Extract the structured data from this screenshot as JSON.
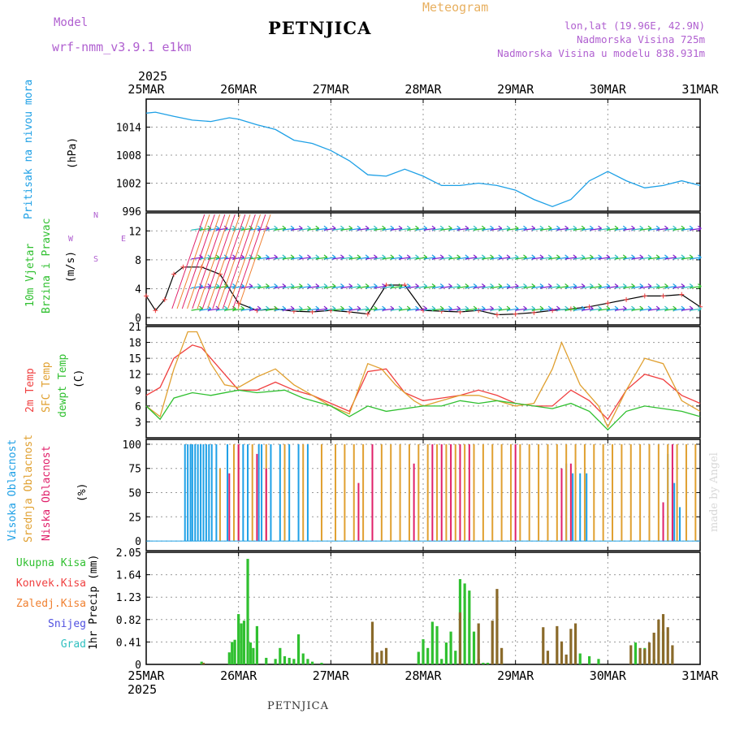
{
  "header": {
    "model_label": "Model",
    "model_name": "wrf-nmm_v3.9.1  e1km",
    "station": "PETNJICA",
    "meteogram": "Meteogram",
    "lonlat": "lon,lat (19.96E, 42.9N)",
    "elev": "Nadmorska Visina 725m",
    "elev_model": "Nadmorska Visina u modelu 838.931m"
  },
  "time_axis": {
    "year": "2025",
    "labels": [
      "25MAR",
      "26MAR",
      "27MAR",
      "28MAR",
      "29MAR",
      "30MAR",
      "31MAR"
    ]
  },
  "footer": "PETNJICA",
  "watermark": "made by Angel",
  "colors": {
    "pressure": "#1ea0e6",
    "t2m": "#f04040",
    "tsfc": "#e0a030",
    "dewpt": "#30c030",
    "high": "#1ea0e6",
    "mid": "#e0a030",
    "low": "#e0206a",
    "total": "#30c030",
    "conv": "#f04040",
    "frz": "#f08030",
    "snow": "#5050e0",
    "hail": "#30c0c0",
    "wind": "#8020d0"
  },
  "panels": {
    "pressure": {
      "ylabel": "Pritisak na nivou mora",
      "unit": "(hPa)"
    },
    "wind": {
      "ylabel1": "10m Vjetar",
      "ylabel2": "Brzina i Pravac",
      "unit": "(m/s)",
      "compass": {
        "n": "N",
        "w": "W",
        "e": "E",
        "s": "S",
        "sep": "<-|->"
      }
    },
    "temp": {
      "lab1": "2m Temp",
      "lab2": "SFC Temp",
      "lab3": "dewpt Temp",
      "unit": "(C)"
    },
    "cloud": {
      "lab1": "Visoka Oblacnost",
      "lab2": "Srednja Oblacnost",
      "lab3": "Niska Oblacnost",
      "unit": "(%)"
    },
    "precip": {
      "legend": [
        "Ukupna Kisa",
        "Konvek.Kisa",
        "Zaledj.Kisa",
        "Snijeg",
        "Grad"
      ],
      "unit": "1hr Precip (mm)"
    }
  },
  "chart_data": [
    {
      "type": "line",
      "title": "Pritisak na nivou mora",
      "ylabel": "(hPa)",
      "ylim": [
        996,
        1020
      ],
      "yticks": [
        "1014",
        "1008",
        "1002",
        "996"
      ],
      "series": [
        {
          "name": "Pritisak",
          "color": "#1ea0e6",
          "x": [
            0,
            0.1,
            0.3,
            0.5,
            0.7,
            0.9,
            1.0,
            1.2,
            1.4,
            1.6,
            1.8,
            2.0,
            2.2,
            2.4,
            2.6,
            2.8,
            3.0,
            3.2,
            3.4,
            3.6,
            3.8,
            4.0,
            4.2,
            4.4,
            4.6,
            4.8,
            4.9,
            5.0,
            5.2,
            5.4,
            5.6,
            5.8,
            6.0
          ],
          "y": [
            1017,
            1017.2,
            1016.3,
            1015.5,
            1015.2,
            1016,
            1015.7,
            1014.5,
            1013.5,
            1011.2,
            1010.5,
            1009,
            1006.8,
            1003.8,
            1003.5,
            1005,
            1003.5,
            1001.5,
            1001.5,
            1002,
            1001.5,
            1000.5,
            998.5,
            997,
            998.5,
            1002.5,
            1003.5,
            1004.5,
            1002.5,
            1001,
            1001.5,
            1002.5,
            1001.5
          ]
        }
      ]
    },
    {
      "type": "line",
      "title": "10m Vjetar Brzina i Pravac",
      "ylabel": "(m/s)",
      "ylim": [
        0,
        14
      ],
      "yticks": [
        "12",
        "8",
        "4",
        "0"
      ],
      "series": [
        {
          "name": "Brzina",
          "x": [
            0,
            0.1,
            0.2,
            0.3,
            0.4,
            0.6,
            0.8,
            1.0,
            1.2,
            1.4,
            1.6,
            1.8,
            2.0,
            2.2,
            2.4,
            2.6,
            2.8,
            3.0,
            3.2,
            3.4,
            3.6,
            3.8,
            4.0,
            4.2,
            4.4,
            4.6,
            4.8,
            5.0,
            5.2,
            5.4,
            5.6,
            5.8,
            6.0
          ],
          "y": [
            3,
            1,
            2.5,
            6,
            7,
            7,
            6,
            2,
            1,
            1.2,
            0.9,
            0.8,
            1,
            0.8,
            0.5,
            4.5,
            4.5,
            1,
            0.9,
            0.8,
            1,
            0.4,
            0.5,
            0.7,
            1,
            1.2,
            1.5,
            2,
            2.5,
            3,
            3,
            3.2,
            1.5
          ]
        }
      ]
    },
    {
      "type": "line",
      "title": "2m Temp / SFC Temp / dewpt Temp",
      "ylabel": "(C)",
      "ylim": [
        0,
        21
      ],
      "yticks": [
        "21",
        "18",
        "15",
        "12",
        "9",
        "6",
        "3"
      ],
      "series": [
        {
          "name": "2m Temp",
          "color": "#f04040",
          "x": [
            0,
            0.15,
            0.3,
            0.5,
            0.6,
            1.0,
            1.2,
            1.4,
            1.6,
            1.8,
            2.0,
            2.2,
            2.4,
            2.6,
            2.8,
            3.0,
            3.2,
            3.4,
            3.6,
            3.8,
            4.0,
            4.2,
            4.4,
            4.6,
            4.8,
            5.0,
            5.2,
            5.4,
            5.6,
            5.8,
            6.0
          ],
          "y": [
            8,
            9.5,
            15,
            17.5,
            17,
            9,
            9,
            10.5,
            9,
            8,
            6.5,
            5,
            12.5,
            13,
            8.5,
            7,
            7.5,
            8,
            9,
            8,
            6.5,
            6,
            6,
            9,
            7,
            3.5,
            9,
            12,
            11,
            8,
            6.5
          ]
        },
        {
          "name": "SFC Temp",
          "color": "#e0a030",
          "x": [
            0,
            0.15,
            0.3,
            0.45,
            0.55,
            0.7,
            0.85,
            1.0,
            1.2,
            1.4,
            1.6,
            1.8,
            2.0,
            2.2,
            2.4,
            2.55,
            2.7,
            2.9,
            3.0,
            3.2,
            3.4,
            3.6,
            3.8,
            4.0,
            4.2,
            4.4,
            4.5,
            4.7,
            4.9,
            5.0,
            5.2,
            5.4,
            5.6,
            5.8,
            6.0
          ],
          "y": [
            6,
            4,
            13,
            20,
            20,
            14,
            10,
            9.5,
            11.5,
            13,
            10,
            8,
            6,
            4.5,
            14,
            13,
            10,
            7,
            6,
            7,
            8,
            8,
            7,
            6,
            6.5,
            13,
            18,
            10,
            6,
            2,
            9,
            15,
            14,
            7,
            5
          ]
        },
        {
          "name": "dewpt Temp",
          "color": "#30c030",
          "x": [
            0,
            0.15,
            0.3,
            0.5,
            0.7,
            1.0,
            1.2,
            1.5,
            1.7,
            2.0,
            2.2,
            2.4,
            2.6,
            2.8,
            3.0,
            3.2,
            3.4,
            3.6,
            3.8,
            4.0,
            4.2,
            4.4,
            4.6,
            4.8,
            5.0,
            5.2,
            5.4,
            5.6,
            5.8,
            6.0
          ],
          "y": [
            6,
            3.5,
            7.5,
            8.5,
            8,
            9,
            8.5,
            9,
            7.5,
            6,
            4,
            6,
            5,
            5.5,
            6,
            6,
            7,
            6.5,
            7,
            6.5,
            6,
            5.5,
            6.5,
            5,
            1.5,
            5,
            6,
            5.5,
            5,
            4
          ]
        }
      ]
    },
    {
      "type": "bar",
      "title": "Oblacnost",
      "ylabel": "(%)",
      "ylim": [
        0,
        100
      ],
      "yticks": [
        "100",
        "75",
        "50",
        "25",
        "0"
      ],
      "series": [
        {
          "name": "Visoka Oblacnost",
          "color": "#1ea0e6",
          "x": [
            0.42,
            0.45,
            0.48,
            0.5,
            0.53,
            0.56,
            0.59,
            0.62,
            0.65,
            0.68,
            0.71,
            0.76,
            0.88,
            1.05,
            1.1,
            1.22,
            1.25,
            1.35,
            1.45,
            1.55,
            1.65,
            1.75,
            4.55,
            4.62,
            4.7,
            4.77,
            5.65,
            5.72,
            5.78
          ],
          "y": [
            100,
            100,
            100,
            100,
            100,
            100,
            100,
            100,
            100,
            100,
            100,
            100,
            100,
            100,
            100,
            100,
            100,
            100,
            100,
            100,
            100,
            100,
            80,
            70,
            70,
            70,
            90,
            60,
            35
          ]
        },
        {
          "name": "Srednja Oblacnost",
          "color": "#e0a030",
          "x": [
            0.8,
            0.95,
            1.0,
            1.15,
            1.3,
            1.5,
            1.7,
            1.9,
            2.05,
            2.15,
            2.25,
            2.35,
            2.45,
            2.55,
            2.65,
            2.75,
            2.85,
            2.95,
            3.05,
            3.15,
            3.25,
            3.35,
            3.45,
            3.55,
            3.65,
            3.75,
            3.85,
            3.95,
            4.05,
            4.15,
            4.25,
            4.35,
            4.45,
            4.55,
            4.65,
            4.75,
            4.85,
            4.95,
            5.05,
            5.15,
            5.25,
            5.35,
            5.45,
            5.55,
            5.65,
            5.75,
            5.85,
            5.95
          ],
          "y": [
            75,
            100,
            100,
            100,
            100,
            100,
            100,
            100,
            100,
            100,
            100,
            100,
            100,
            100,
            100,
            100,
            100,
            100,
            100,
            100,
            100,
            100,
            100,
            100,
            100,
            100,
            100,
            100,
            100,
            100,
            100,
            100,
            100,
            100,
            100,
            100,
            100,
            100,
            100,
            100,
            100,
            100,
            100,
            100,
            100,
            100,
            100,
            100
          ]
        },
        {
          "name": "Niska Oblacnost",
          "color": "#e0206a",
          "x": [
            0.9,
            1.0,
            1.2,
            1.3,
            2.3,
            2.45,
            2.9,
            3.1,
            3.2,
            3.3,
            3.4,
            3.5,
            4.0,
            4.5,
            4.6,
            5.6,
            5.7
          ],
          "y": [
            70,
            100,
            90,
            75,
            60,
            100,
            80,
            100,
            100,
            100,
            100,
            100,
            100,
            75,
            80,
            40,
            100
          ]
        }
      ]
    },
    {
      "type": "bar",
      "title": "1hr Precip",
      "ylabel": "(mm)",
      "ylim": [
        0,
        2.05
      ],
      "yticks": [
        "2.05",
        "1.64",
        "1.23",
        "0.82",
        "0.41",
        "0"
      ],
      "series": [
        {
          "name": "Ukupna Kisa",
          "color": "#30c030",
          "x": [
            0.6,
            0.9,
            0.93,
            0.96,
            1.0,
            1.03,
            1.06,
            1.1,
            1.13,
            1.16,
            1.2,
            1.3,
            1.4,
            1.45,
            1.5,
            1.55,
            1.6,
            1.65,
            1.7,
            1.75,
            1.8,
            1.9,
            2.95,
            3.0,
            3.05,
            3.1,
            3.15,
            3.2,
            3.25,
            3.3,
            3.35,
            3.4,
            3.45,
            3.5,
            3.55,
            3.6,
            3.65,
            3.7,
            3.8,
            3.85,
            4.7,
            4.8,
            4.9,
            5.3,
            5.4,
            5.5,
            5.6,
            5.7
          ],
          "y": [
            0.05,
            0.22,
            0.41,
            0.45,
            0.92,
            0.75,
            0.8,
            1.93,
            0.4,
            0.3,
            0.7,
            0.12,
            0.1,
            0.3,
            0.15,
            0.12,
            0.1,
            0.55,
            0.2,
            0.1,
            0.05,
            0.03,
            0.23,
            0.46,
            0.3,
            0.78,
            0.7,
            0.1,
            0.4,
            0.6,
            0.25,
            1.56,
            1.48,
            1.35,
            0.6,
            0.1,
            0.03,
            0.03,
            0.08,
            0.04,
            0.2,
            0.15,
            0.1,
            0.4,
            0.3,
            0.1,
            0.6,
            0.1
          ]
        },
        {
          "name": "Konvek.Kisa",
          "color": "#f04040",
          "x": [
            0.62,
            2.45,
            2.5,
            2.55,
            2.6,
            3.4,
            3.6,
            3.75,
            3.8,
            3.85,
            4.3,
            4.35,
            4.45,
            4.5,
            4.55,
            4.6,
            4.65,
            5.25,
            5.35,
            5.4,
            5.45,
            5.5,
            5.55,
            5.6,
            5.65,
            5.7
          ],
          "y": [
            0.03,
            0.78,
            0.22,
            0.25,
            0.3,
            0.95,
            0.75,
            0.8,
            1.38,
            0.3,
            0.68,
            0.25,
            0.7,
            0.42,
            0.18,
            0.65,
            0.75,
            0.35,
            0.3,
            0.28,
            0.4,
            0.58,
            0.82,
            0.92,
            0.68,
            0.35
          ]
        },
        {
          "name": "Zaledj.Kisa",
          "color": "#f08030",
          "x": [],
          "y": []
        },
        {
          "name": "Snijeg",
          "color": "#5050e0",
          "x": [],
          "y": []
        },
        {
          "name": "Grad",
          "color": "#30c0c0",
          "x": [],
          "y": []
        }
      ]
    }
  ]
}
